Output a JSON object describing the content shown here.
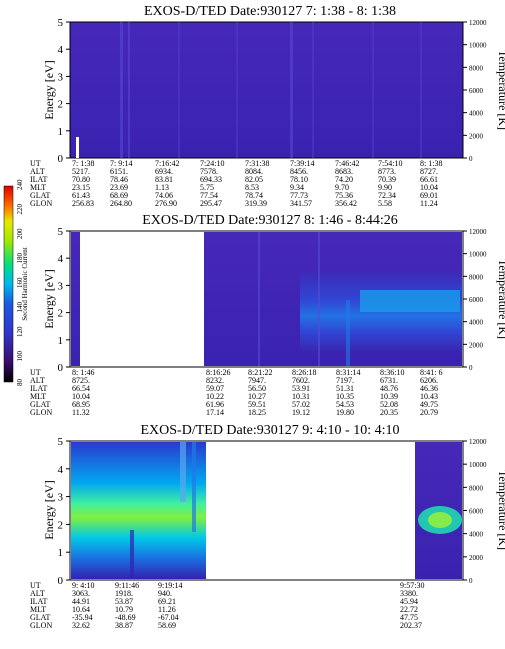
{
  "chart_data": [
    {
      "type": "heatmap",
      "title": "EXOS-D/TED   Date:930127  7: 1:38 - 8: 1:38",
      "ylabel": "Energy [eV]",
      "y2label": "Temperature [K]",
      "ylim": [
        0,
        5
      ],
      "y2lim": [
        0,
        12000
      ],
      "yticks": [
        "0",
        "1",
        "2",
        "3",
        "4",
        "5"
      ],
      "y2ticks": [
        "0",
        "2000",
        "4000",
        "6000",
        "8000",
        "10000",
        "12000"
      ],
      "table": {
        "rows": [
          "UT",
          "ALT",
          "ILAT",
          "MLT",
          "GLAT",
          "GLON"
        ],
        "columns": [
          [
            "7: 1:38",
            "5217.",
            "70.80",
            "23.15",
            "61.43",
            "256.83"
          ],
          [
            "7: 9:14",
            "6151.",
            "78.46",
            "23.69",
            "68.69",
            "264.80"
          ],
          [
            "7:16:42",
            "6934.",
            "83.81",
            "1.13",
            "74.06",
            "276.90"
          ],
          [
            "7:24:10",
            "7578.",
            "694.33",
            "5.75",
            "77.54",
            "295.47"
          ],
          [
            "7:31:38",
            "8084.",
            "82.05",
            "8.53",
            "78.74",
            "319.39"
          ],
          [
            "7:39:14",
            "8456.",
            "78.10",
            "9.34",
            "77.73",
            "341.57"
          ],
          [
            "7:46:42",
            "8683.",
            "74.20",
            "9.70",
            "75.36",
            "356.42"
          ],
          [
            "7:54:10",
            "8773.",
            "70.39",
            "9.90",
            "72.34",
            "5.58"
          ],
          [
            "8: 1:38",
            "8727.",
            "66.61",
            "10.04",
            "69.01",
            "11.24"
          ]
        ]
      },
      "data_regions": [
        {
          "t_start": 0.0,
          "t_end": 1.0,
          "level": "low",
          "description": "uniform low counts"
        }
      ]
    },
    {
      "type": "heatmap",
      "title": "EXOS-D/TED   Date:930127  8: 1:46 - 8:44:26",
      "ylabel": "Energy [eV]",
      "y2label": "Temperature [K]",
      "ylim": [
        0,
        5
      ],
      "y2lim": [
        0,
        12000
      ],
      "yticks": [
        "0",
        "1",
        "2",
        "3",
        "4",
        "5"
      ],
      "y2ticks": [
        "0",
        "2000",
        "4000",
        "6000",
        "8000",
        "10000",
        "12000"
      ],
      "table": {
        "rows": [
          "UT",
          "ALT",
          "ILAT",
          "MLT",
          "GLAT",
          "GLON"
        ],
        "columns": [
          [
            "8: 1:46",
            "8725.",
            "66.54",
            "10.04",
            "68.95",
            "11.32"
          ],
          [
            "8:16:26",
            "8232.",
            "59.07",
            "10.22",
            "61.96",
            "17.14"
          ],
          [
            "8:21:22",
            "7947.",
            "56.50",
            "10.27",
            "59.51",
            "18.25"
          ],
          [
            "8:26:18",
            "7602.",
            "53.91",
            "10.31",
            "57.02",
            "19.12"
          ],
          [
            "8:31:14",
            "7197.",
            "51.31",
            "10.35",
            "54.53",
            "19.80"
          ],
          [
            "8:36:10",
            "6731.",
            "48.76",
            "10.39",
            "52.08",
            "20.35"
          ],
          [
            "8:41: 6",
            "6206.",
            "46.36",
            "10.43",
            "49.75",
            "20.79"
          ]
        ]
      },
      "data_regions": [
        {
          "t_start": 0.0,
          "t_end": 0.02,
          "level": "low"
        },
        {
          "t_start": 0.02,
          "t_end": 0.34,
          "level": "gap"
        },
        {
          "t_start": 0.34,
          "t_end": 1.0,
          "level": "medium",
          "peak_energy": [
            1.2,
            3.0
          ]
        }
      ]
    },
    {
      "type": "heatmap",
      "title": "EXOS-D/TED   Date:930127  9: 4:10 - 10: 4:10",
      "ylabel": "Energy [eV]",
      "y2label": "Temperature [K]",
      "ylim": [
        0,
        5
      ],
      "y2lim": [
        0,
        12000
      ],
      "yticks": [
        "0",
        "1",
        "2",
        "3",
        "4",
        "5"
      ],
      "y2ticks": [
        "0",
        "2000",
        "4000",
        "6000",
        "8000",
        "10000",
        "12000"
      ],
      "table": {
        "rows": [
          "UT",
          "ALT",
          "ILAT",
          "MLT",
          "GLAT",
          "GLON"
        ],
        "columns": [
          [
            "9: 4:10",
            "3063.",
            "44.91",
            "10.64",
            "-35.94",
            "32.62"
          ],
          [
            "9:11:46",
            "1918.",
            "53.87",
            "10.79",
            "-48.69",
            "38.87"
          ],
          [
            "9:19:14",
            "940.",
            "69.21",
            "11.26",
            "-67.04",
            "58.69"
          ],
          [
            "9:57:30",
            "3380.",
            "45.94",
            "22.72",
            "47.75",
            "202.37"
          ]
        ]
      },
      "data_regions": [
        {
          "t_start": 0.0,
          "t_end": 0.37,
          "level": "high",
          "peak_energy": [
            1.5,
            2.5
          ]
        },
        {
          "t_start": 0.37,
          "t_end": 0.89,
          "level": "gap"
        },
        {
          "t_start": 0.89,
          "t_end": 1.0,
          "level": "high",
          "peak_energy": [
            1.5,
            2.5
          ]
        }
      ]
    }
  ],
  "colorbar": {
    "label": "Second Harmonic Current",
    "min": 80,
    "max": 240,
    "ticks": [
      "80",
      "100",
      "120",
      "140",
      "160",
      "180",
      "200",
      "220",
      "240"
    ],
    "colors": [
      "#000000",
      "#3a0a6a",
      "#3333cc",
      "#1a5ae0",
      "#00b8f0",
      "#00e080",
      "#a0e800",
      "#e8e800",
      "#ff6a00",
      "#e00000"
    ]
  }
}
